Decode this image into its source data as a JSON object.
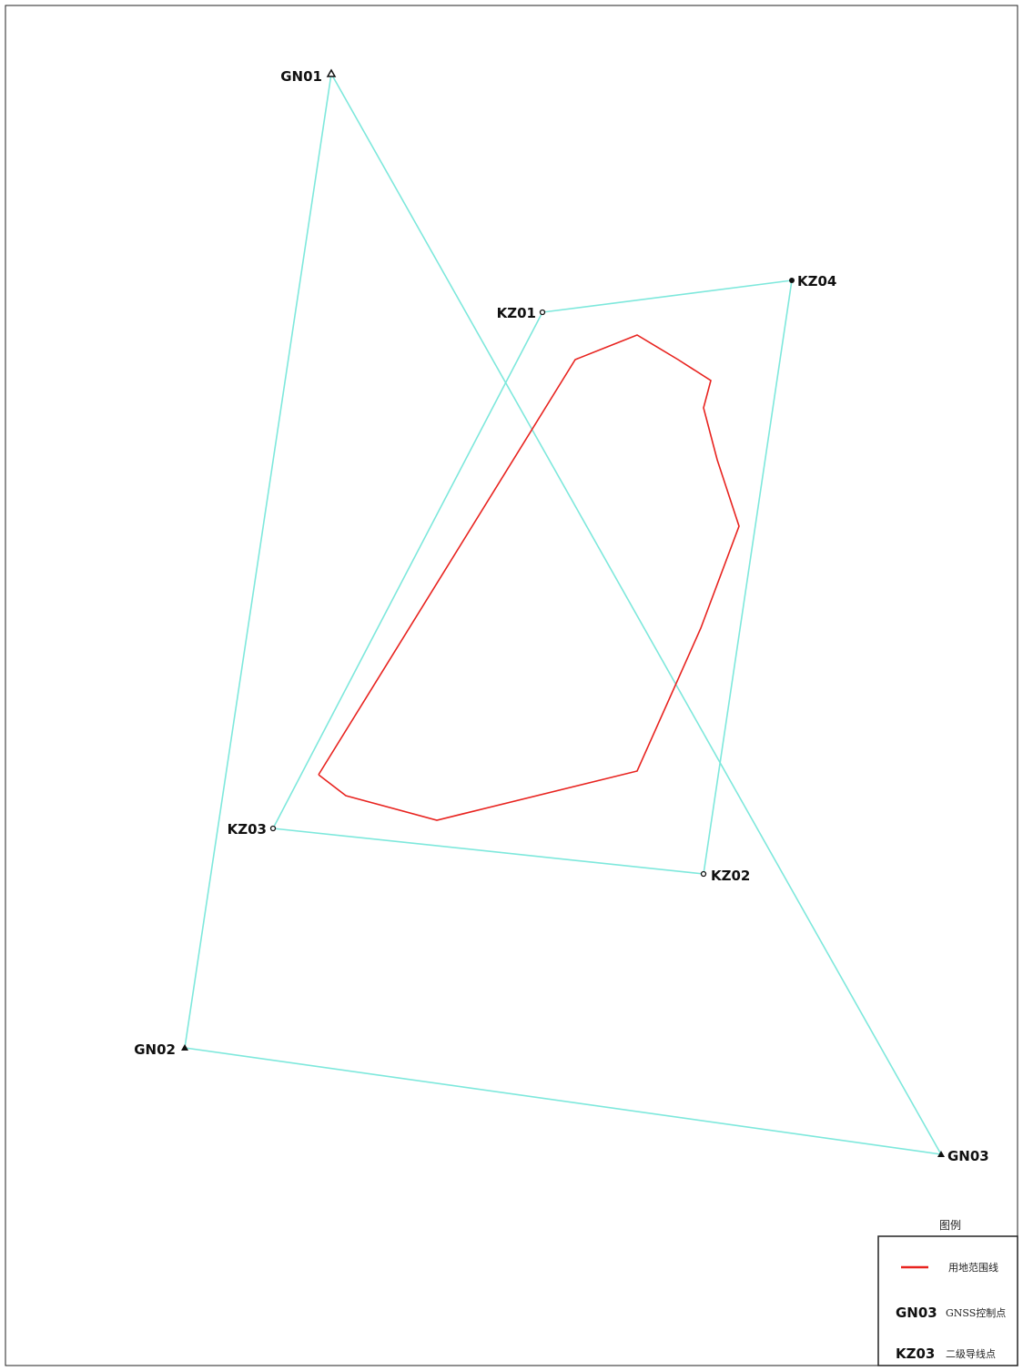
{
  "colors": {
    "network_line": "#7ee8dc",
    "boundary_line": "#e8231f",
    "marker": "#111111",
    "frame": "#222222"
  },
  "control_points": [
    {
      "id": "GN01",
      "label": "GN01",
      "kind": "gnss",
      "icon": "triangle-open-icon"
    },
    {
      "id": "GN02",
      "label": "GN02",
      "kind": "gnss",
      "icon": "triangle-filled-icon"
    },
    {
      "id": "GN03",
      "label": "GN03",
      "kind": "gnss",
      "icon": "triangle-filled-icon"
    },
    {
      "id": "KZ01",
      "label": "KZ01",
      "kind": "traverse",
      "icon": "circle-open-icon"
    },
    {
      "id": "KZ02",
      "label": "KZ02",
      "kind": "traverse",
      "icon": "circle-open-icon"
    },
    {
      "id": "KZ03",
      "label": "KZ03",
      "kind": "traverse",
      "icon": "circle-open-icon"
    },
    {
      "id": "KZ04",
      "label": "KZ04",
      "kind": "traverse",
      "icon": "circle-filled-icon"
    }
  ],
  "network_edges": [
    [
      "GN01",
      "GN02"
    ],
    [
      "GN02",
      "GN03"
    ],
    [
      "GN03",
      "GN01"
    ],
    [
      "KZ01",
      "KZ04"
    ],
    [
      "KZ04",
      "KZ02"
    ],
    [
      "KZ02",
      "KZ03"
    ],
    [
      "KZ03",
      "KZ01"
    ]
  ],
  "legend": {
    "title": "图例",
    "items": [
      {
        "symbol": "red-line",
        "code": "",
        "text": "用地范围线"
      },
      {
        "symbol": "code",
        "code": "GN03",
        "text": "GNSS控制点"
      },
      {
        "symbol": "code",
        "code": "KZ03",
        "text": "二级导线点"
      }
    ]
  }
}
